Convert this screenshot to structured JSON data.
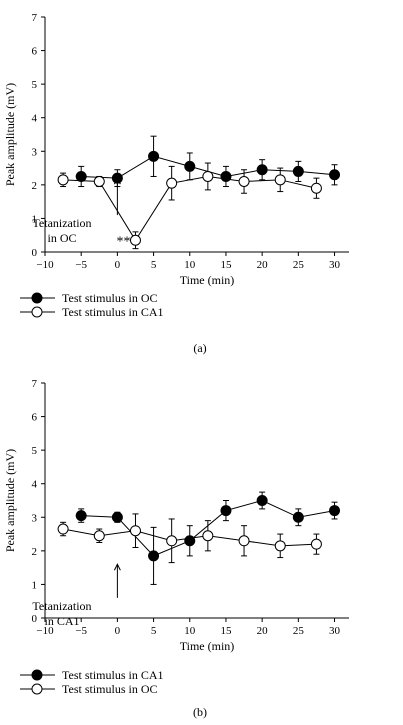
{
  "chart_data": [
    {
      "type": "line",
      "panel_label": "(a)",
      "xlabel": "Time (min)",
      "ylabel": "Peak amplitude (mV)",
      "xlim": [
        -10,
        32
      ],
      "ylim": [
        0,
        7
      ],
      "xticks": [
        -10,
        -5,
        0,
        5,
        10,
        15,
        20,
        25,
        30
      ],
      "yticks": [
        0,
        1,
        2,
        3,
        4,
        5,
        6,
        7
      ],
      "annotation": {
        "text_line1": "Tetanization",
        "text_line2": "in OC",
        "arrow_x": 0,
        "arrow_y_from": 1.1,
        "arrow_y_to": 2.2
      },
      "significance": {
        "text": "**",
        "x": 2.5,
        "y": 0.25
      },
      "series": [
        {
          "name": "Test stimulus in OC",
          "marker": "filled-circle",
          "x": [
            -5,
            0,
            5,
            10,
            15,
            20,
            25,
            30
          ],
          "y": [
            2.25,
            2.2,
            2.85,
            2.55,
            2.25,
            2.45,
            2.4,
            2.3
          ],
          "err": [
            0.3,
            0.25,
            0.6,
            0.4,
            0.3,
            0.3,
            0.3,
            0.3
          ]
        },
        {
          "name": "Test stimulus in CA1",
          "marker": "open-circle",
          "x": [
            -7.5,
            -2.5,
            2.5,
            7.5,
            12.5,
            17.5,
            22.5,
            27.5
          ],
          "y": [
            2.15,
            2.1,
            0.35,
            2.05,
            2.25,
            2.1,
            2.15,
            1.9
          ],
          "err": [
            0.2,
            0.15,
            0.25,
            0.5,
            0.4,
            0.35,
            0.35,
            0.3
          ]
        }
      ]
    },
    {
      "type": "line",
      "panel_label": "(b)",
      "xlabel": "Time (min)",
      "ylabel": "Peak amplitude (mV)",
      "xlim": [
        -10,
        32
      ],
      "ylim": [
        0,
        7
      ],
      "xticks": [
        -10,
        -5,
        0,
        5,
        10,
        15,
        20,
        25,
        30
      ],
      "yticks": [
        0,
        1,
        2,
        3,
        4,
        5,
        6,
        7
      ],
      "annotation": {
        "text_line1": "Tetanization",
        "text_line2": "in CA1",
        "arrow_x": 0,
        "arrow_y_from": 0.6,
        "arrow_y_to": 1.6
      },
      "series": [
        {
          "name": "Test stimulus in CA1",
          "marker": "filled-circle",
          "x": [
            -5,
            0,
            5,
            10,
            15,
            20,
            25,
            30
          ],
          "y": [
            3.05,
            3.0,
            1.85,
            2.3,
            3.2,
            3.5,
            3.0,
            3.2
          ],
          "err": [
            0.2,
            0.15,
            0.85,
            0.45,
            0.3,
            0.25,
            0.25,
            0.25
          ]
        },
        {
          "name": "Test stimulus in OC",
          "marker": "open-circle",
          "x": [
            -7.5,
            -2.5,
            2.5,
            7.5,
            12.5,
            17.5,
            22.5,
            27.5
          ],
          "y": [
            2.65,
            2.45,
            2.6,
            2.3,
            2.45,
            2.3,
            2.15,
            2.2
          ],
          "err": [
            0.2,
            0.2,
            0.5,
            0.65,
            0.45,
            0.45,
            0.35,
            0.3
          ]
        }
      ]
    }
  ]
}
